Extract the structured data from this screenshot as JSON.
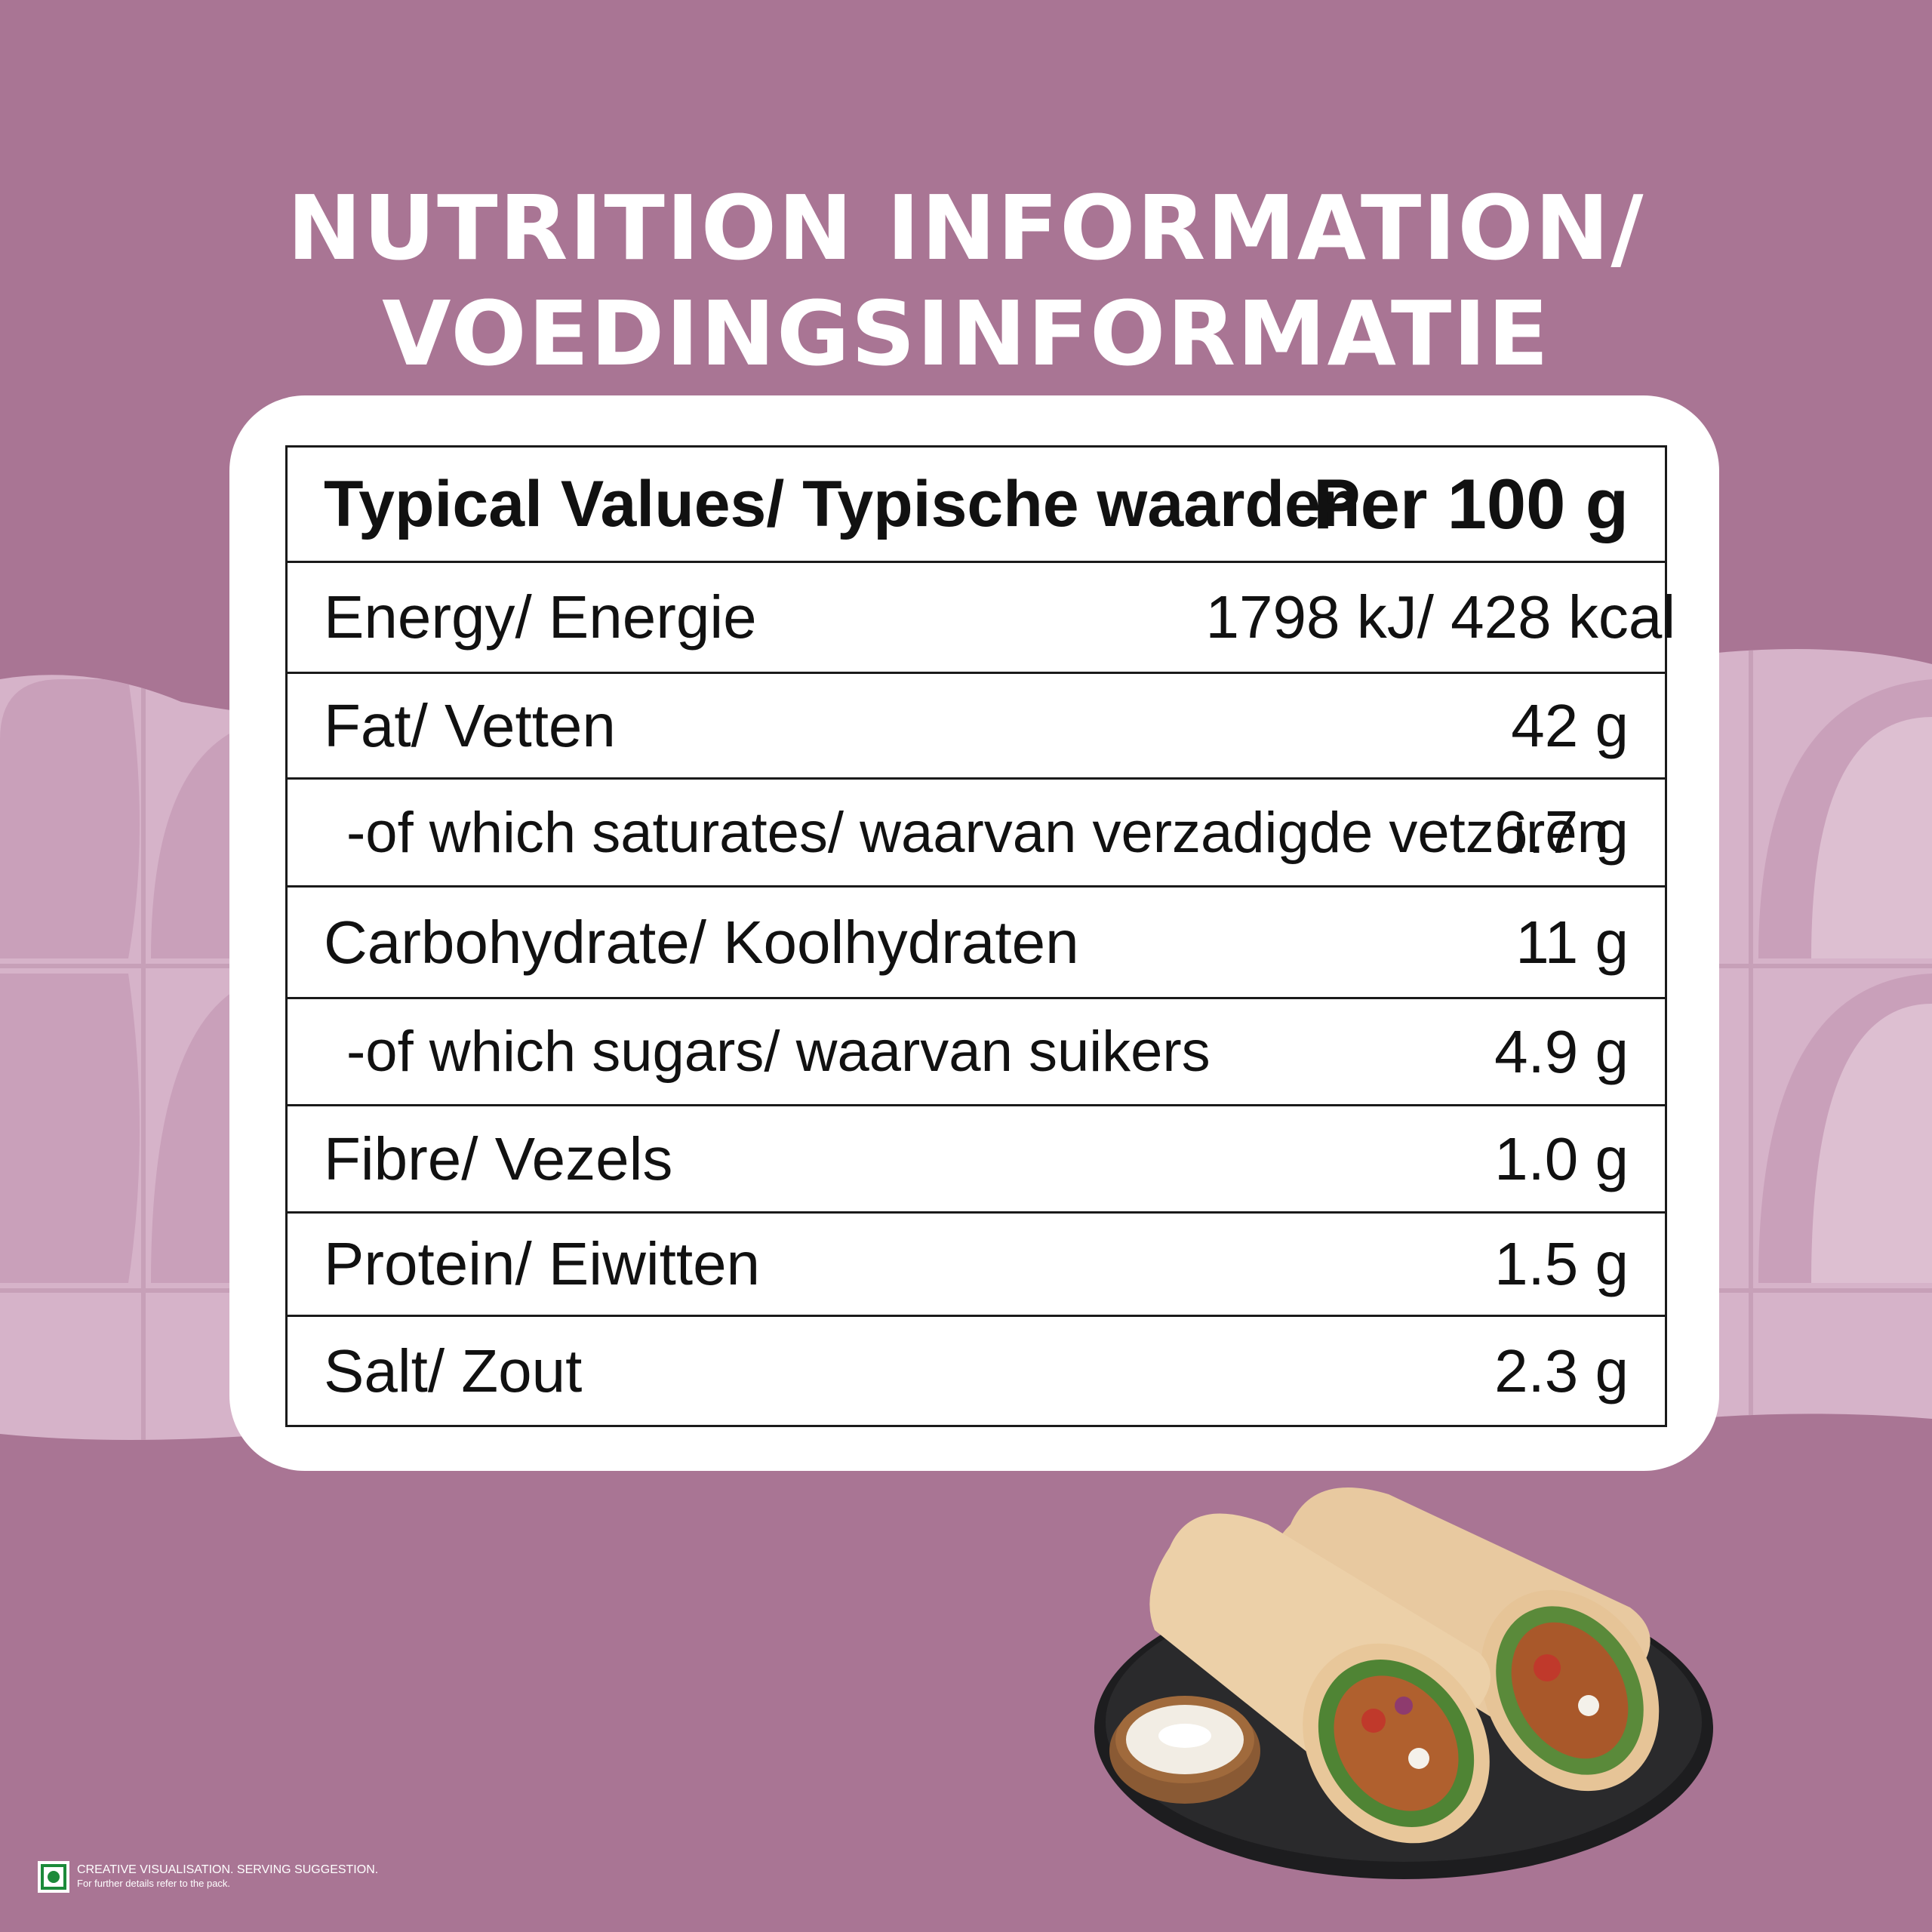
{
  "title": {
    "line1": "NUTRITION  INFORMATION/",
    "line2": "VOEDINGSINFORMATIE"
  },
  "table": {
    "header": {
      "label": "Typical Values/ Typische waarden",
      "value": "Per 100 g"
    },
    "rows": [
      {
        "label": "Energy/ Energie",
        "value": "1798 kJ/ 428 kcal"
      },
      {
        "label": "Fat/ Vetten",
        "value": "42 g"
      },
      {
        "label": "-of which saturates/ waarvan verzadigde vetzuren",
        "value": "6.7 g"
      },
      {
        "label": "Carbohydrate/ Koolhydraten",
        "value": "11 g"
      },
      {
        "label": "-of which sugars/ waarvan suikers",
        "value": "4.9 g"
      },
      {
        "label": "Fibre/ Vezels",
        "value": "1.0 g"
      },
      {
        "label": "Protein/ Eiwitten",
        "value": "1.5 g"
      },
      {
        "label": "Salt/ Zout",
        "value": "2.3 g"
      }
    ]
  },
  "footnote": {
    "line1": "CREATIVE  VISUALISATION. SERVING  SUGGESTION.",
    "line2": "For further details refer to the pack.",
    "mark_icon": "veg-mark-icon"
  },
  "colors": {
    "background": "#a97594",
    "pattern": "#d6b3c9",
    "card": "#ffffff",
    "text": "#111111",
    "veg_mark": "#1c8a3a"
  }
}
